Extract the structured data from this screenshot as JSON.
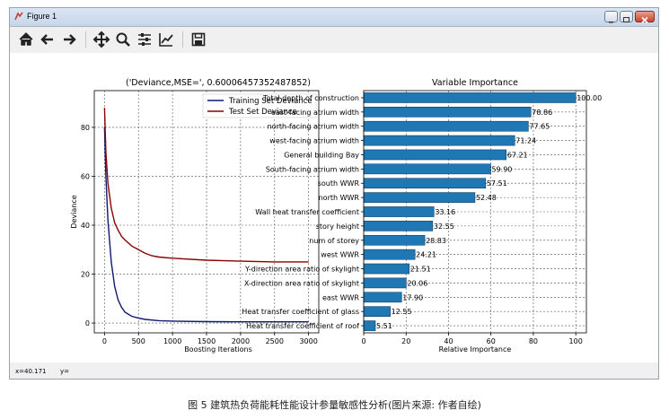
{
  "window": {
    "title": "Figure 1",
    "status_x": "x=40.171",
    "status_y": "y="
  },
  "toolbar": {
    "buttons": [
      "home-icon",
      "back-icon",
      "forward-icon",
      "pan-icon",
      "zoom-icon",
      "configure-subplots-icon",
      "edit-axis-icon",
      "save-icon"
    ]
  },
  "caption": "图 5 建筑热负荷能耗性能设计参量敏感性分析(图片来源: 作者自绘)",
  "colors": {
    "training": "#0f1a6e",
    "test": "#8b0000",
    "bar": "#1f77b4"
  },
  "chart_data": [
    {
      "type": "line",
      "title": "('Deviance,MSE=', 0.60006457352487852)",
      "xlabel": "Boosting Iterations",
      "ylabel": "Deviance",
      "xlim": [
        -150,
        3150
      ],
      "ylim": [
        -4,
        95
      ],
      "xticks": [
        0,
        500,
        1000,
        1500,
        2000,
        2500,
        3000
      ],
      "yticks": [
        0,
        20,
        40,
        60,
        80
      ],
      "grid": true,
      "legend": "top-right",
      "series": [
        {
          "name": "Training Set Deviance",
          "color": "#0f1a6e",
          "x": [
            1,
            20,
            50,
            100,
            150,
            200,
            250,
            300,
            400,
            500,
            600,
            800,
            1000,
            1500,
            2000,
            2500,
            3000
          ],
          "y": [
            80,
            60,
            42,
            25,
            15,
            9.5,
            6.5,
            4.5,
            2.8,
            2.0,
            1.5,
            1.0,
            0.8,
            0.6,
            0.5,
            0.5,
            0.5
          ]
        },
        {
          "name": "Test Set Deviance",
          "color": "#8b0000",
          "x": [
            1,
            20,
            50,
            100,
            150,
            200,
            250,
            300,
            400,
            500,
            600,
            700,
            800,
            1000,
            1500,
            2000,
            2500,
            3000
          ],
          "y": [
            88,
            70,
            57,
            47,
            41,
            38,
            35.5,
            34,
            31.5,
            30,
            28.5,
            27.5,
            27,
            26.5,
            25.7,
            25.3,
            25,
            25
          ]
        }
      ]
    },
    {
      "type": "bar",
      "orientation": "horizontal",
      "title": "Variable Importance",
      "xlabel": "Relative Importance",
      "ylabel": "",
      "xlim": [
        0,
        105
      ],
      "xticks": [
        0,
        20,
        40,
        60,
        80,
        100
      ],
      "grid": true,
      "categories": [
        "Total depth of construction",
        "east-facing atrium width",
        "north-facing atrium width",
        "west-facing atrium width",
        "General building Bay",
        "South-facing atrium width",
        "south WWR",
        "north WWR",
        "Wall heat transfer coefficient",
        "story height",
        "num of storey",
        "west WWR",
        "Y-direction area ratio of skylight",
        "X-direction area ratio of skylight",
        "east WWR",
        "Heat transfer coefficient of glass",
        "Heat transfer coefficient of roof"
      ],
      "values": [
        100.0,
        78.86,
        77.65,
        71.24,
        67.21,
        59.9,
        57.51,
        52.48,
        33.16,
        32.55,
        28.83,
        24.21,
        21.51,
        20.06,
        17.9,
        12.55,
        5.51
      ],
      "value_labels": [
        "100.00",
        "78.86",
        "77.65",
        "71.24",
        "67.21",
        "59.90",
        "57.51",
        "52.48",
        "33.16",
        "32.55",
        "28.83",
        "24.21",
        "21.51",
        "20.06",
        "17.90",
        "12.55",
        "5.51"
      ]
    }
  ]
}
